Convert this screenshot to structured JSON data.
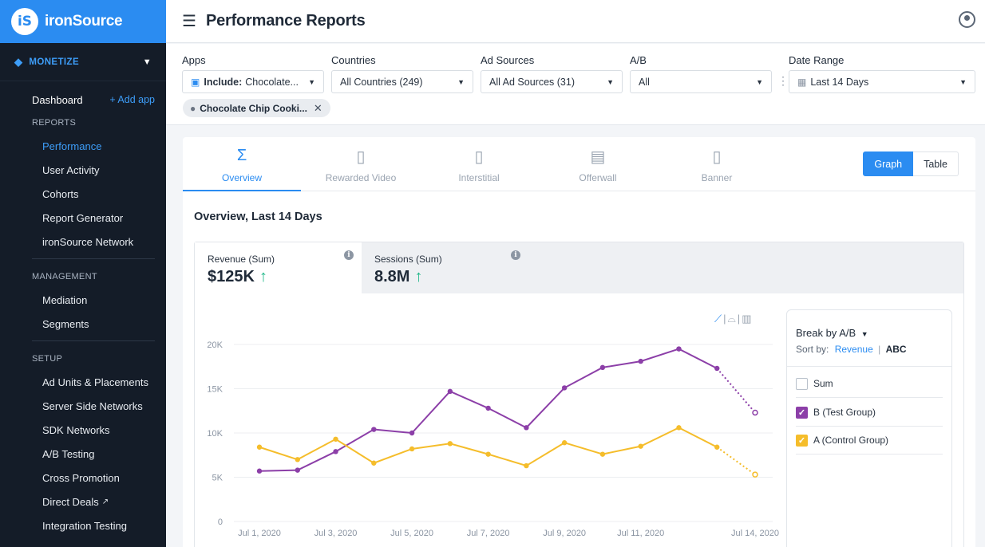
{
  "brand": {
    "logo": "iS",
    "name": "ironSource"
  },
  "sidebar": {
    "monetize_label": "MONETIZE",
    "dashboard": "Dashboard",
    "add_app": "+ Add app",
    "reports_header": "REPORTS",
    "reports": [
      "Performance",
      "User Activity",
      "Cohorts",
      "Report Generator",
      "ironSource Network"
    ],
    "management_header": "MANAGEMENT",
    "management": [
      "Mediation",
      "Segments"
    ],
    "setup_header": "SETUP",
    "setup": [
      "Ad Units & Placements",
      "Server Side Networks",
      "SDK Networks",
      "A/B Testing",
      "Cross Promotion",
      "Direct Deals",
      "Integration Testing"
    ]
  },
  "header": {
    "title": "Performance Reports"
  },
  "filters": {
    "apps_label": "Apps",
    "apps_include": "Include:",
    "apps_value": "Chocolate...",
    "countries_label": "Countries",
    "countries_value": "All Countries (249)",
    "adsources_label": "Ad Sources",
    "adsources_value": "All Ad Sources (31)",
    "ab_label": "A/B",
    "ab_value": "All",
    "date_label": "Date Range",
    "date_value": "Last 14 Days",
    "chip": "Chocolate Chip Cooki..."
  },
  "tabs": [
    {
      "label": "Overview",
      "icon": "sigma-icon",
      "glyph": "Σ"
    },
    {
      "label": "Rewarded Video",
      "icon": "video-icon",
      "glyph": "▯"
    },
    {
      "label": "Interstitial",
      "icon": "phone-icon",
      "glyph": "▯"
    },
    {
      "label": "Offerwall",
      "icon": "list-phone-icon",
      "glyph": "▤"
    },
    {
      "label": "Banner",
      "icon": "banner-phone-icon",
      "glyph": "▯"
    }
  ],
  "view_toggle": {
    "graph": "Graph",
    "table": "Table"
  },
  "section_title": "Overview,  Last 14 Days",
  "metrics": [
    {
      "label": "Revenue (Sum)",
      "value": "$125K",
      "trend": "↑"
    },
    {
      "label": "Sessions (Sum)",
      "value": "8.8M",
      "trend": "↑"
    }
  ],
  "legend": {
    "title": "Break by A/B",
    "sort_by": "Sort by:",
    "sort_revenue": "Revenue",
    "sort_abc": "ABC",
    "items": [
      {
        "label": "Sum",
        "checked": false
      },
      {
        "label": "B (Test Group)",
        "checked": true,
        "color": "#8c3fa8"
      },
      {
        "label": "A (Control Group)",
        "checked": true,
        "color": "#f5bd2b"
      }
    ]
  },
  "chart_data": {
    "type": "line",
    "x": [
      "Jul 1",
      "Jul 2",
      "Jul 3",
      "Jul 4",
      "Jul 5",
      "Jul 6",
      "Jul 7",
      "Jul 8",
      "Jul 9",
      "Jul 10",
      "Jul 11",
      "Jul 12",
      "Jul 13",
      "Jul 14"
    ],
    "tick_labels": [
      "Jul 1, 2020",
      "Jul 3, 2020",
      "Jul 5, 2020",
      "Jul 7, 2020",
      "Jul 9, 2020",
      "Jul 11, 2020",
      "Jul 14, 2020"
    ],
    "tick_index": [
      0,
      2,
      4,
      6,
      8,
      10,
      13
    ],
    "y_ticks": [
      "0",
      "5K",
      "10K",
      "15K",
      "20K"
    ],
    "ylim": [
      0,
      20000
    ],
    "series": [
      {
        "name": "B (Test Group)",
        "color": "#8c3fa8",
        "values": [
          5700,
          5800,
          7900,
          10400,
          10000,
          14700,
          12800,
          10600,
          15100,
          17400,
          18100,
          19500,
          17300,
          12300
        ]
      },
      {
        "name": "A (Control Group)",
        "color": "#f5bd2b",
        "values": [
          8400,
          7000,
          9300,
          6600,
          8200,
          8800,
          7600,
          6300,
          8900,
          7600,
          8500,
          10600,
          8400,
          5300
        ]
      }
    ],
    "dashed_last_segment": true,
    "grid": true
  }
}
